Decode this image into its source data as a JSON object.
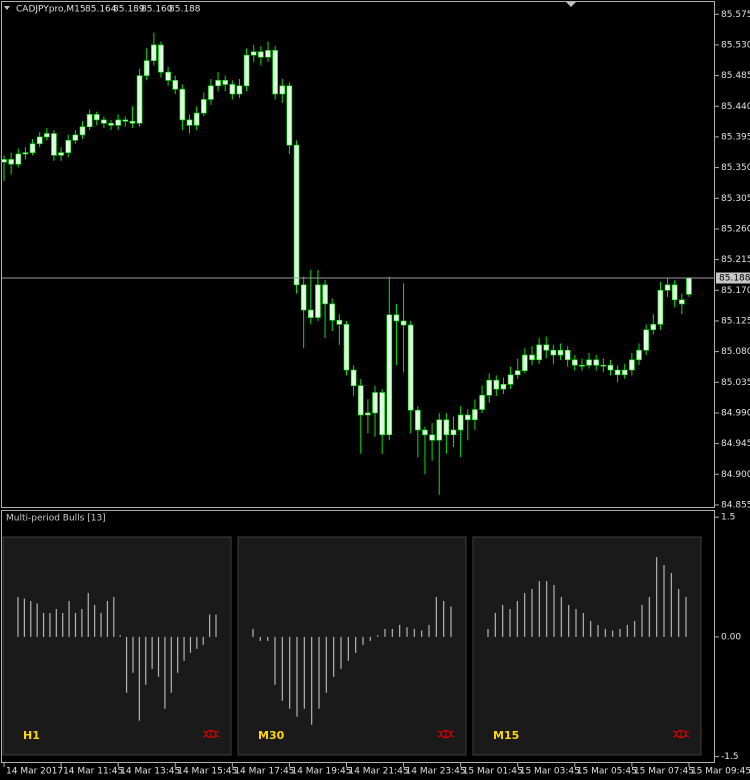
{
  "chart_data": [
    {
      "type": "candlestick",
      "symbol": "CADJPYpro,M15",
      "ohlc_labels": [
        "85.164",
        "85.189",
        "85.160",
        "85.188"
      ],
      "categories": [
        "14 Mar 2017",
        null,
        null,
        null,
        null,
        null,
        null,
        null,
        "14 Mar 11:45",
        null,
        null,
        null,
        null,
        null,
        null,
        null,
        "14 Mar 13:45",
        null,
        null,
        null,
        null,
        null,
        null,
        null,
        "14 Mar 15:45",
        null,
        null,
        null,
        null,
        null,
        null,
        null,
        "14 Mar 17:45",
        null,
        null,
        null,
        null,
        null,
        null,
        null,
        "14 Mar 19:45",
        null,
        null,
        null,
        null,
        null,
        null,
        null,
        "14 Mar 21:45",
        null,
        null,
        null,
        null,
        null,
        null,
        null,
        "14 Mar 23:45",
        null,
        null,
        null,
        null,
        null,
        null,
        null,
        "15 Mar 01:45",
        null,
        null,
        null,
        null,
        null,
        null,
        null,
        "15 Mar 03:45",
        null,
        null,
        null,
        null,
        null,
        null,
        null,
        "15 Mar 05:45",
        null,
        null,
        null,
        null,
        null,
        null,
        null,
        "15 Mar 07:45",
        null,
        null,
        null,
        null,
        null,
        null,
        null,
        "15 Mar 09:45"
      ],
      "open": [
        85.358,
        85.362,
        85.355,
        85.37,
        85.372,
        85.385,
        85.395,
        85.4,
        85.368,
        85.372,
        85.39,
        85.398,
        85.41,
        85.428,
        85.42,
        85.415,
        85.412,
        85.42,
        85.418,
        85.415,
        85.485,
        85.507,
        85.53,
        85.49,
        85.478,
        85.465,
        85.42,
        85.412,
        85.43,
        85.45,
        85.47,
        85.478,
        85.472,
        85.458,
        85.47,
        85.515,
        85.52,
        85.512,
        85.522,
        85.458,
        85.47,
        85.383,
        85.178,
        85.141,
        85.13,
        85.178,
        85.15,
        85.126,
        85.12,
        85.053,
        85.03,
        84.987,
        84.99,
        85.02,
        84.958,
        85.134,
        85.125,
        85.119,
        84.994,
        84.965,
        84.958,
        84.95,
        84.98,
        84.958,
        84.965,
        84.987,
        84.98,
        84.995,
        85.016,
        85.038,
        85.025,
        85.032,
        85.046,
        85.052,
        85.075,
        85.068,
        85.09,
        85.082,
        85.075,
        85.082,
        85.068,
        85.06,
        85.06,
        85.068,
        85.06,
        85.06,
        85.053,
        85.046,
        85.053,
        85.068,
        85.082,
        85.112,
        85.12,
        85.17,
        85.178,
        85.156,
        85.164
      ],
      "high": [
        85.368,
        85.372,
        85.378,
        85.38,
        85.392,
        85.402,
        85.408,
        85.405,
        85.38,
        85.398,
        85.405,
        85.418,
        85.435,
        85.432,
        85.425,
        85.42,
        85.428,
        85.425,
        85.44,
        85.495,
        85.525,
        85.548,
        85.535,
        85.498,
        85.485,
        85.472,
        85.428,
        85.44,
        85.46,
        85.48,
        85.49,
        85.485,
        85.478,
        85.48,
        85.525,
        85.53,
        85.528,
        85.535,
        85.528,
        85.48,
        85.475,
        85.39,
        85.19,
        85.2,
        85.2,
        85.185,
        85.158,
        85.135,
        85.125,
        85.06,
        85.04,
        85.01,
        85.03,
        85.025,
        85.19,
        85.15,
        85.18,
        85.125,
        85.0,
        84.97,
        84.975,
        84.99,
        84.99,
        84.985,
        85.0,
        84.995,
        85.01,
        85.03,
        85.048,
        85.045,
        85.042,
        85.058,
        85.07,
        85.085,
        85.088,
        85.1,
        85.102,
        85.09,
        85.092,
        85.088,
        85.075,
        85.07,
        85.078,
        85.075,
        85.07,
        85.068,
        85.06,
        85.062,
        85.078,
        85.092,
        85.12,
        85.135,
        85.182,
        85.188,
        85.185,
        85.165,
        85.189
      ],
      "low": [
        85.33,
        85.34,
        85.35,
        85.362,
        85.368,
        85.38,
        85.39,
        85.36,
        85.36,
        85.365,
        85.385,
        85.392,
        85.405,
        85.412,
        85.408,
        85.405,
        85.405,
        85.41,
        85.408,
        85.41,
        85.478,
        85.5,
        85.482,
        85.47,
        85.458,
        85.405,
        85.4,
        85.405,
        85.425,
        85.442,
        85.462,
        85.462,
        85.45,
        85.452,
        85.462,
        85.505,
        85.5,
        85.505,
        85.45,
        85.445,
        85.37,
        85.165,
        85.085,
        85.12,
        85.125,
        85.1,
        85.11,
        85.09,
        85.045,
        85.015,
        84.93,
        84.96,
        84.955,
        84.93,
        84.95,
        85.06,
        85.05,
        84.96,
        84.925,
        84.9,
        84.92,
        84.87,
        84.93,
        84.94,
        84.925,
        84.95,
        84.965,
        84.99,
        85.005,
        85.015,
        85.018,
        85.025,
        85.04,
        85.048,
        85.06,
        85.062,
        85.07,
        85.062,
        85.068,
        85.058,
        85.052,
        85.052,
        85.055,
        85.052,
        85.05,
        85.045,
        85.035,
        85.04,
        85.045,
        85.06,
        85.075,
        85.105,
        85.112,
        85.16,
        85.145,
        85.135,
        85.16
      ],
      "close": [
        85.362,
        85.355,
        85.37,
        85.372,
        85.385,
        85.395,
        85.4,
        85.368,
        85.372,
        85.39,
        85.398,
        85.41,
        85.428,
        85.42,
        85.415,
        85.412,
        85.42,
        85.418,
        85.415,
        85.485,
        85.507,
        85.53,
        85.49,
        85.478,
        85.465,
        85.42,
        85.412,
        85.43,
        85.45,
        85.47,
        85.478,
        85.472,
        85.458,
        85.47,
        85.515,
        85.52,
        85.512,
        85.522,
        85.458,
        85.47,
        85.383,
        85.178,
        85.141,
        85.13,
        85.178,
        85.15,
        85.126,
        85.12,
        85.053,
        85.03,
        84.987,
        84.99,
        85.02,
        84.958,
        85.134,
        85.125,
        85.119,
        84.994,
        84.965,
        84.958,
        84.95,
        84.98,
        84.958,
        84.965,
        84.987,
        84.98,
        84.995,
        85.016,
        85.038,
        85.025,
        85.032,
        85.046,
        85.052,
        85.075,
        85.068,
        85.09,
        85.082,
        85.075,
        85.082,
        85.068,
        85.06,
        85.06,
        85.068,
        85.06,
        85.06,
        85.053,
        85.046,
        85.053,
        85.068,
        85.082,
        85.112,
        85.12,
        85.17,
        85.178,
        85.156,
        85.15,
        85.188
      ],
      "ylim": [
        84.852,
        85.593
      ],
      "yticks": [
        85.575,
        {
          "value": 85.53,
          "label": "85.530"
        },
        85.485,
        {
          "value": 85.44,
          "label": "85.440"
        },
        85.395,
        {
          "value": 85.35,
          "label": "85.350"
        },
        85.305,
        {
          "value": 85.26,
          "label": "85.260"
        },
        85.215,
        {
          "value": 85.17,
          "label": "85.170"
        },
        85.125,
        {
          "value": 85.08,
          "label": "85.080"
        },
        85.035,
        {
          "value": 84.99,
          "label": "84.990"
        },
        84.945,
        {
          "value": 84.9,
          "label": "84.900"
        },
        84.855
      ],
      "last_price": 85.188,
      "wick_color": "#00e600",
      "body_color": "#dcffdc"
    },
    {
      "type": "bar",
      "title": "Multi-period Bulls [13]",
      "ylim": [
        -1.58,
        1.59
      ],
      "yticks": [
        1.5,
        {
          "value": 0,
          "label": "0.00"
        },
        -1.5
      ],
      "label_color": "#ffd700",
      "series": [
        {
          "name": "H1",
          "color": "#b4b4b4",
          "values": [
            0.5,
            0.48,
            0.45,
            0.42,
            0.3,
            0.3,
            0.35,
            0.3,
            0.45,
            0.3,
            0.35,
            0.55,
            0.4,
            0.3,
            0.45,
            0.5,
            0.02,
            -0.7,
            -0.45,
            -1.05,
            -0.6,
            -0.4,
            -0.5,
            -0.9,
            -0.7,
            -0.45,
            -0.3,
            -0.2,
            -0.15,
            -0.1,
            0.28,
            0.28
          ]
        },
        {
          "name": "M30",
          "color": "#b4b4b4",
          "values": [
            0.1,
            -0.05,
            -0.05,
            -0.6,
            -0.8,
            -0.9,
            -1.0,
            -0.9,
            -1.1,
            -0.9,
            -0.7,
            -0.5,
            -0.4,
            -0.3,
            -0.2,
            -0.1,
            -0.05,
            0.02,
            0.1,
            0.1,
            0.15,
            0.12,
            0.1,
            0.08,
            0.15,
            0.5,
            0.45,
            0.38
          ]
        },
        {
          "name": "M15",
          "color": "#b4b4b4",
          "values": [
            0.1,
            0.3,
            0.4,
            0.35,
            0.45,
            0.55,
            0.6,
            0.7,
            0.7,
            0.65,
            0.5,
            0.4,
            0.35,
            0.3,
            0.2,
            0.15,
            0.1,
            0.08,
            0.1,
            0.15,
            0.2,
            0.4,
            0.5,
            1.0,
            0.9,
            0.8,
            0.6,
            0.5
          ]
        }
      ]
    }
  ]
}
